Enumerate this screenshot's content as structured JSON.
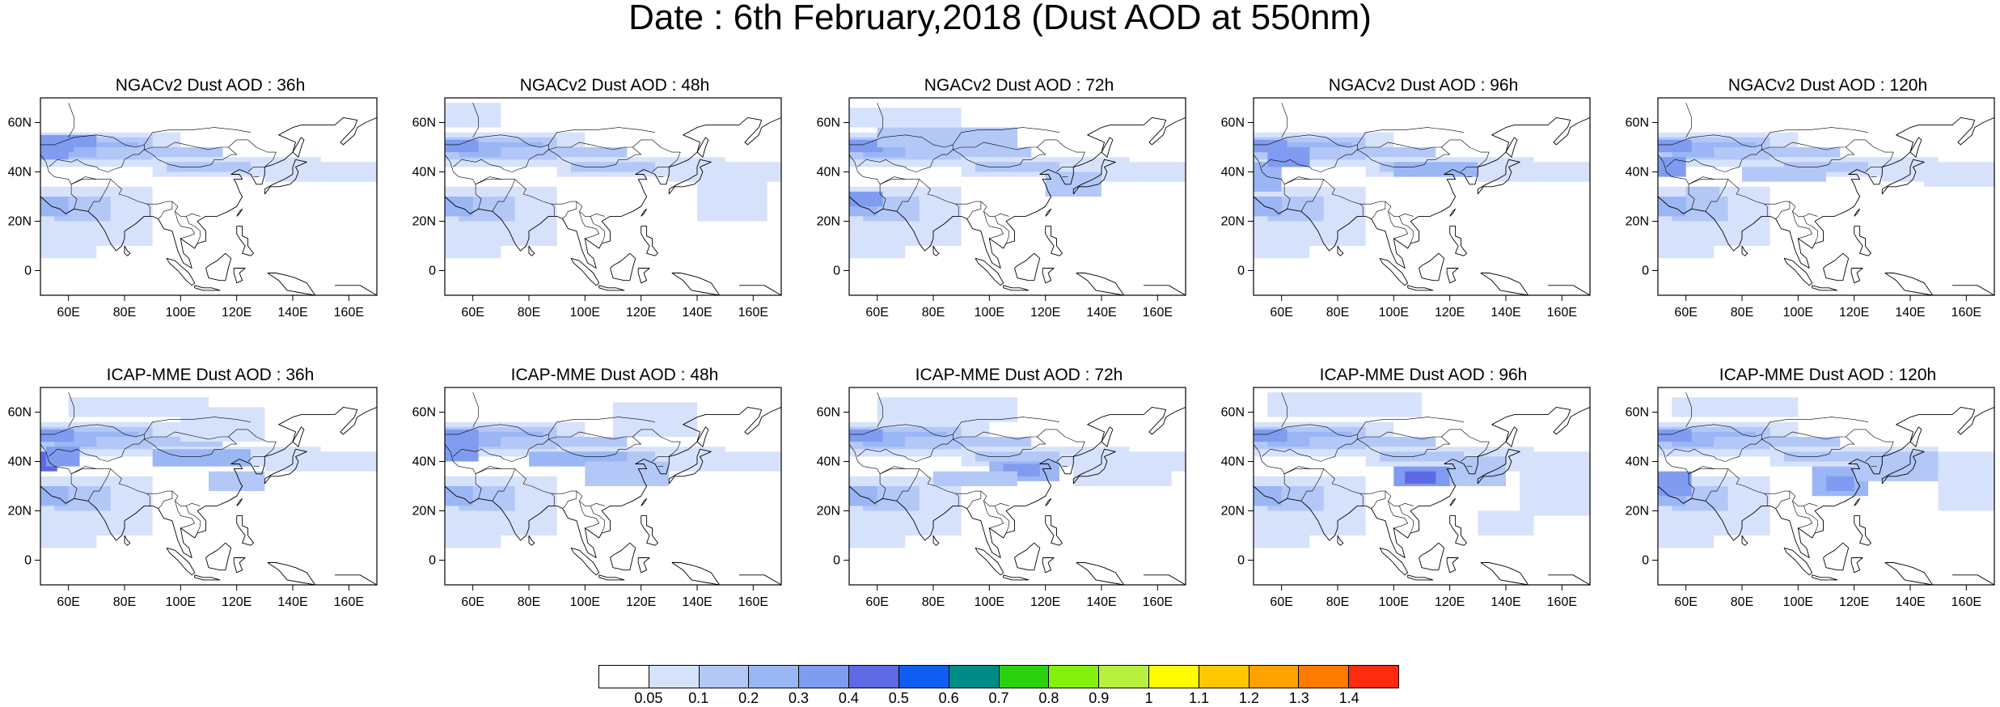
{
  "title": "Date : 6th February,2018 (Dust AOD at 550nm)",
  "chart_data": {
    "type": "heatmap",
    "panels": [
      {
        "title": "NGACv2 Dust AOD : 36h"
      },
      {
        "title": "NGACv2 Dust AOD : 48h"
      },
      {
        "title": "NGACv2 Dust AOD : 72h"
      },
      {
        "title": "NGACv2 Dust AOD : 96h"
      },
      {
        "title": "NGACv2 Dust AOD : 120h"
      },
      {
        "title": "ICAP-MME Dust AOD : 36h"
      },
      {
        "title": "ICAP-MME Dust AOD : 48h"
      },
      {
        "title": "ICAP-MME Dust AOD : 72h"
      },
      {
        "title": "ICAP-MME Dust AOD : 96h"
      },
      {
        "title": "ICAP-MME Dust AOD : 120h"
      }
    ],
    "lon_range": [
      50,
      170
    ],
    "lat_range": [
      -10,
      70
    ],
    "x_ticks": [
      {
        "value": 60,
        "label": "60E"
      },
      {
        "value": 80,
        "label": "80E"
      },
      {
        "value": 100,
        "label": "100E"
      },
      {
        "value": 120,
        "label": "120E"
      },
      {
        "value": 140,
        "label": "140E"
      },
      {
        "value": 160,
        "label": "160E"
      }
    ],
    "y_ticks": [
      {
        "value": 0,
        "label": "0"
      },
      {
        "value": 20,
        "label": "20N"
      },
      {
        "value": 40,
        "label": "40N"
      },
      {
        "value": 60,
        "label": "60N"
      }
    ],
    "colorbar": {
      "labels": [
        "0.05",
        "0.1",
        "0.2",
        "0.3",
        "0.4",
        "0.5",
        "0.6",
        "0.7",
        "0.8",
        "0.9",
        "1",
        "1.1",
        "1.2",
        "1.3",
        "1.4"
      ],
      "colors": [
        "#ffffff",
        "#d6e2fb",
        "#b3c8f7",
        "#9ab6f5",
        "#7f9cf0",
        "#5f69e3",
        "#0f5ef2",
        "#008c86",
        "#2bd10f",
        "#84f00d",
        "#b9f040",
        "#fffb00",
        "#ffc800",
        "#ffa200",
        "#ff7a00",
        "#ff2a10"
      ]
    }
  }
}
